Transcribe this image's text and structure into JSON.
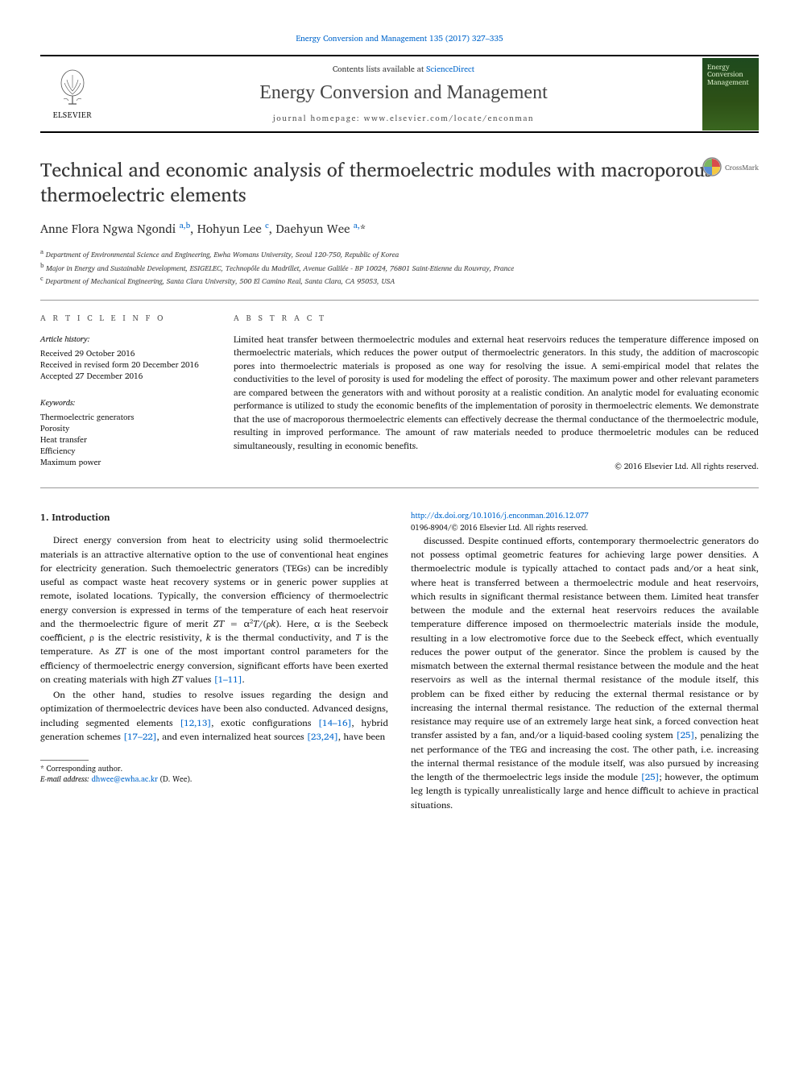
{
  "journal_ref": {
    "text": "Energy Conversion and Management 135 (2017) 327–335",
    "color": "#0066cc"
  },
  "header": {
    "contents_prefix": "Contents lists available at ",
    "contents_link": "ScienceDirect",
    "journal_name": "Energy Conversion and Management",
    "homepage_prefix": "journal homepage: ",
    "homepage": "www.elsevier.com/locate/enconman",
    "elsevier": "ELSEVIER",
    "cover_title": "Energy Conversion Management"
  },
  "crossmark": {
    "label": "CrossMark"
  },
  "article": {
    "title": "Technical and economic analysis of thermoelectric modules with macroporous thermoelectric elements",
    "authors_html": "Anne Flora Ngwa Ngondi <sup>a,b</sup>, Hohyun Lee <sup>c</sup>, Daehyun Wee <sup>a,</sup>*",
    "affiliations": [
      {
        "sup": "a",
        "text": "Department of Environmental Science and Engineering, Ewha Womans University, Seoul 120-750, Republic of Korea"
      },
      {
        "sup": "b",
        "text": "Major in Energy and Sustainable Development, ESIGELEC, Technopôle du Madrillet, Avenue Galilée - BP 10024, 76801 Saint-Etienne du Rouvray, France"
      },
      {
        "sup": "c",
        "text": "Department of Mechanical Engineering, Santa Clara University, 500 El Camino Real, Santa Clara, CA 95053, USA"
      }
    ]
  },
  "meta": {
    "info_heading": "A R T I C L E   I N F O",
    "abstract_heading": "A B S T R A C T",
    "history_label": "Article history:",
    "history": [
      "Received 29 October 2016",
      "Received in revised form 20 December 2016",
      "Accepted 27 December 2016"
    ],
    "keywords_label": "Keywords:",
    "keywords": [
      "Thermoelectric generators",
      "Porosity",
      "Heat transfer",
      "Efficiency",
      "Maximum power"
    ],
    "abstract": "Limited heat transfer between thermoelectric modules and external heat reservoirs reduces the temperature difference imposed on thermoelectric materials, which reduces the power output of thermoelectric generators. In this study, the addition of macroscopic pores into thermoelectric materials is proposed as one way for resolving the issue. A semi-empirical model that relates the conductivities to the level of porosity is used for modeling the effect of porosity. The maximum power and other relevant parameters are compared between the generators with and without porosity at a realistic condition. An analytic model for evaluating economic performance is utilized to study the economic benefits of the implementation of porosity in thermoelectric elements. We demonstrate that the use of macroporous thermoelectric elements can effectively decrease the thermal conductance of the thermoelectric module, resulting in improved performance. The amount of raw materials needed to produce thermoeletric modules can be reduced simultaneously, resulting in economic benefits.",
    "copyright": "© 2016 Elsevier Ltd. All rights reserved."
  },
  "body": {
    "section1_heading": "1. Introduction",
    "p1": "Direct energy conversion from heat to electricity using solid thermoelectric materials is an attractive alternative option to the use of conventional heat engines for electricity generation. Such themoelectric generators (TEGs) can be incredibly useful as compact waste heat recovery systems or in generic power supplies at remote, isolated locations. Typically, the conversion efficiency of thermoelectric energy conversion is expressed in terms of the temperature of each heat reservoir and the thermoelectric figure of merit ZT = α²T/(ρk). Here, α is the Seebeck coefficient, ρ is the electric resistivity, k is the thermal conductivity, and T is the temperature. As ZT is one of the most important control parameters for the efficiency of thermoelectric energy conversion, significant efforts have been exerted on creating materials with high ZT values ",
    "p1_cite": "[1–11]",
    "p1_tail": ".",
    "p2_a": "On the other hand, studies to resolve issues regarding the design and optimization of thermoelectric devices have been also conducted. Advanced designs, including segmented elements ",
    "p2_c1": "[12,13]",
    "p2_b": ", exotic configurations ",
    "p2_c2": "[14–16]",
    "p2_c": ", hybrid generation schemes ",
    "p2_c3": "[17–22]",
    "p2_d": ", and even internalized heat sources ",
    "p2_c4": "[23,24]",
    "p2_e": ", have been ",
    "p3_a": "discussed. Despite continued efforts, contemporary thermoelectric generators do not possess optimal geometric features for achieving large power densities. A thermoelectric module is typically attached to contact pads and/or a heat sink, where heat is transferred between a thermoelectric module and heat reservoirs, which results in significant thermal resistance between them. Limited heat transfer between the module and the external heat reservoirs reduces the available temperature difference imposed on thermoelectric materials inside the module, resulting in a low electromotive force due to the Seebeck effect, which eventually reduces the power output of the generator. Since the problem is caused by the mismatch between the external thermal resistance between the module and the heat reservoirs as well as the internal thermal resistance of the module itself, this problem can be fixed either by reducing the external thermal resistance or by increasing the internal thermal resistance. The reduction of the external thermal resistance may require use of an extremely large heat sink, a forced convection heat transfer assisted by a fan, and/or a liquid-based cooling system ",
    "p3_c1": "[25]",
    "p3_b": ", penalizing the net performance of the TEG and increasing the cost. The other path, i.e. increasing the internal thermal resistance of the module itself, was also pursued by increasing the length of the thermoelectric legs inside the module ",
    "p3_c2": "[25]",
    "p3_c": "; however, the optimum leg length is typically unrealistically large and hence difficult to achieve in practical situations."
  },
  "footer": {
    "corr": "* Corresponding author.",
    "email_label": "E-mail address: ",
    "email": "dhwee@ewha.ac.kr",
    "email_who": " (D. Wee).",
    "doi": "http://dx.doi.org/10.1016/j.enconman.2016.12.077",
    "issn": "0196-8904/© 2016 Elsevier Ltd. All rights reserved."
  },
  "colors": {
    "link": "#0066cc",
    "text": "#1a1a1a",
    "cover_bg_top": "#1e4a1e",
    "cover_bg_bottom": "#3a6620"
  }
}
